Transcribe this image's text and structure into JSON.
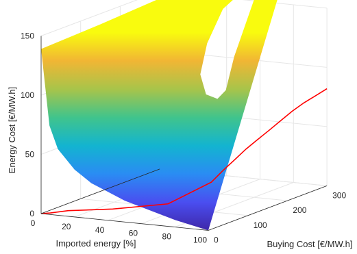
{
  "chart_data": {
    "type": "surface3d",
    "title": "",
    "axes": {
      "x": {
        "label": "Imported energy [%]",
        "range": [
          0,
          100
        ],
        "ticks": [
          0,
          20,
          40,
          60,
          80,
          100
        ],
        "tick_labels": [
          "0",
          "20",
          "40",
          "60",
          "80",
          "100"
        ]
      },
      "y": {
        "label": "Buying Cost [€/MW.h]",
        "range": [
          0,
          300
        ],
        "ticks": [
          0,
          100,
          200,
          300
        ],
        "tick_labels": [
          "0",
          "100",
          "200",
          "300"
        ]
      },
      "z": {
        "label": "Energy Cost [€/MW.h]",
        "range": [
          0,
          150
        ],
        "ticks": [
          0,
          50,
          100,
          150
        ],
        "tick_labels": [
          "0",
          "50",
          "100",
          "150"
        ]
      }
    },
    "grid": true,
    "colormap": "parula",
    "colormap_stops": [
      "#3e26a8",
      "#4a4ef0",
      "#2a8cf3",
      "#13b4d0",
      "#40c48c",
      "#a8c44a",
      "#f1b634",
      "#f9fb0e"
    ],
    "surface_front_edge_imported_vs_cost": [
      [
        0,
        139
      ],
      [
        5,
        75
      ],
      [
        10,
        56
      ],
      [
        20,
        40
      ],
      [
        30,
        30
      ],
      [
        40,
        24
      ],
      [
        50,
        18
      ],
      [
        60,
        14
      ],
      [
        70,
        10
      ],
      [
        80,
        6
      ],
      [
        90,
        3
      ],
      [
        100,
        0
      ]
    ],
    "optimal_path": {
      "color": "#ff0000",
      "points": [
        [
          100,
          300,
          82
        ],
        [
          99,
          276,
          79
        ],
        [
          98,
          250,
          76
        ],
        [
          97,
          225,
          72
        ],
        [
          96,
          200,
          67
        ],
        [
          95,
          176,
          62
        ],
        [
          94,
          150,
          57
        ],
        [
          93,
          125,
          52
        ],
        [
          92,
          101,
          46
        ],
        [
          91,
          76,
          40
        ],
        [
          90,
          50,
          33
        ],
        [
          70,
          25,
          15
        ],
        [
          40,
          12,
          8
        ],
        [
          15,
          5,
          4
        ],
        [
          5,
          2,
          1
        ],
        [
          0,
          0,
          0
        ]
      ]
    }
  }
}
